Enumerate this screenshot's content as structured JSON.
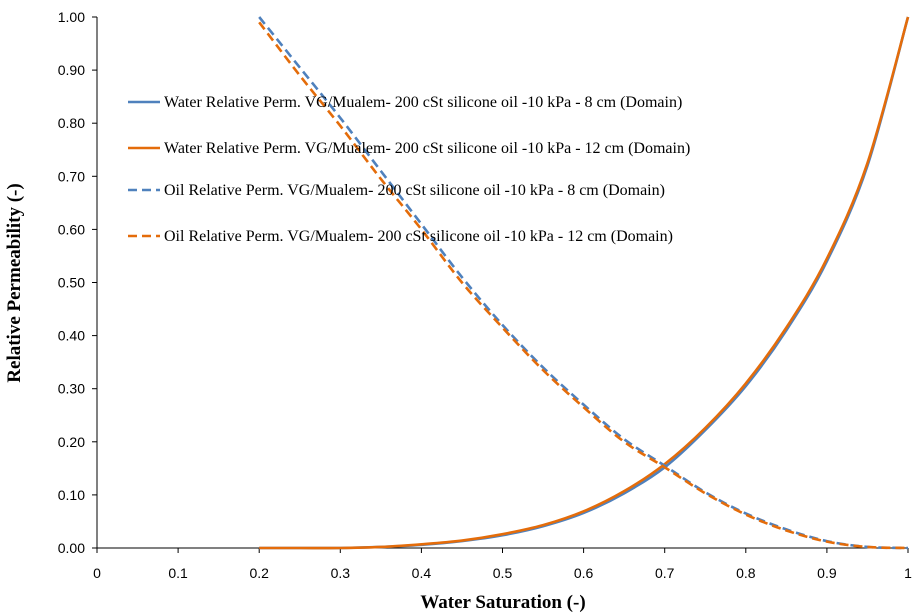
{
  "chart_data": {
    "type": "line",
    "title": "",
    "xlabel": "Water Saturation (-)",
    "ylabel": "Relative Permeability (-)",
    "xlim": [
      0,
      1
    ],
    "ylim": [
      0,
      1
    ],
    "x_ticks": [
      0,
      0.1,
      0.2,
      0.3,
      0.4,
      0.5,
      0.6,
      0.7,
      0.8,
      0.9,
      1
    ],
    "x_tick_labels": [
      "0",
      "0.1",
      "0.2",
      "0.3",
      "0.4",
      "0.5",
      "0.6",
      "0.7",
      "0.8",
      "0.9",
      "1"
    ],
    "y_ticks": [
      0,
      0.1,
      0.2,
      0.3,
      0.4,
      0.5,
      0.6,
      0.7,
      0.8,
      0.9,
      1
    ],
    "y_tick_labels": [
      "0.00",
      "0.10",
      "0.20",
      "0.30",
      "0.40",
      "0.50",
      "0.60",
      "0.70",
      "0.80",
      "0.90",
      "1.00"
    ],
    "grid": false,
    "legend_position": "upper-left",
    "series": [
      {
        "name": "Water Relative Perm. VG/Mualem- 200 cSt silicone oil -10 kPa - 8 cm (Domain)",
        "color": "#4f81bd",
        "dash": "solid",
        "x": [
          0.2,
          0.25,
          0.3,
          0.35,
          0.4,
          0.45,
          0.5,
          0.55,
          0.6,
          0.65,
          0.7,
          0.75,
          0.8,
          0.85,
          0.9,
          0.95,
          1.0
        ],
        "y": [
          0.0,
          0.0,
          0.0,
          0.002,
          0.006,
          0.013,
          0.024,
          0.041,
          0.066,
          0.103,
          0.152,
          0.222,
          0.305,
          0.41,
          0.54,
          0.72,
          1.0
        ]
      },
      {
        "name": "Water Relative Perm. VG/Mualem- 200 cSt silicone oil -10 kPa - 12 cm (Domain)",
        "color": "#e46c0a",
        "dash": "solid",
        "x": [
          0.2,
          0.25,
          0.3,
          0.35,
          0.4,
          0.45,
          0.5,
          0.55,
          0.6,
          0.65,
          0.7,
          0.75,
          0.8,
          0.85,
          0.9,
          0.95,
          1.0
        ],
        "y": [
          0.0,
          0.0,
          0.0,
          0.002,
          0.007,
          0.014,
          0.026,
          0.043,
          0.069,
          0.107,
          0.158,
          0.226,
          0.31,
          0.415,
          0.545,
          0.725,
          1.0
        ]
      },
      {
        "name": "Oil  Relative Perm. VG/Mualem- 200 cSt silicone oil -10 kPa - 8 cm (Domain)",
        "color": "#4f81bd",
        "dash": "dashed",
        "x": [
          0.2,
          0.25,
          0.3,
          0.35,
          0.4,
          0.45,
          0.5,
          0.55,
          0.6,
          0.65,
          0.7,
          0.75,
          0.8,
          0.85,
          0.9,
          0.95,
          1.0
        ],
        "y": [
          1.0,
          0.905,
          0.81,
          0.71,
          0.61,
          0.51,
          0.42,
          0.34,
          0.27,
          0.205,
          0.155,
          0.105,
          0.065,
          0.035,
          0.013,
          0.002,
          0.0
        ]
      },
      {
        "name": "Oil  Relative Perm. VG/Mualem- 200 cSt silicone oil -10 kPa - 12 cm (Domain)",
        "color": "#e46c0a",
        "dash": "dashed",
        "x": [
          0.2,
          0.25,
          0.3,
          0.35,
          0.4,
          0.45,
          0.5,
          0.55,
          0.6,
          0.65,
          0.7,
          0.75,
          0.8,
          0.85,
          0.9,
          0.95,
          1.0
        ],
        "y": [
          0.99,
          0.89,
          0.795,
          0.695,
          0.6,
          0.5,
          0.415,
          0.335,
          0.265,
          0.2,
          0.152,
          0.103,
          0.063,
          0.033,
          0.012,
          0.002,
          0.0
        ]
      }
    ]
  }
}
